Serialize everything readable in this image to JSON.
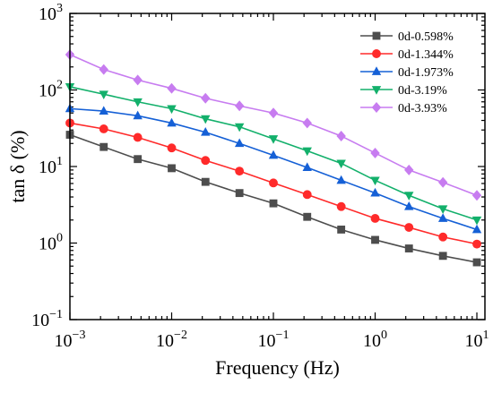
{
  "chart_data": {
    "type": "line",
    "xlabel": "Frequency (Hz)",
    "ylabel": "tan δ (%)",
    "xscale": "log",
    "yscale": "log",
    "xlim": [
      0.001,
      12
    ],
    "ylim": [
      0.1,
      1000
    ],
    "x_ticks": [
      {
        "value": 0.001,
        "base": "10",
        "exp": "−3"
      },
      {
        "value": 0.01,
        "base": "10",
        "exp": "−2"
      },
      {
        "value": 0.1,
        "base": "10",
        "exp": "−1"
      },
      {
        "value": 1,
        "base": "10",
        "exp": "0"
      },
      {
        "value": 10,
        "base": "10",
        "exp": "1"
      }
    ],
    "y_ticks": [
      {
        "value": 0.1,
        "base": "10",
        "exp": "−1"
      },
      {
        "value": 1,
        "base": "10",
        "exp": "0"
      },
      {
        "value": 10,
        "base": "10",
        "exp": "1"
      },
      {
        "value": 100,
        "base": "10",
        "exp": "2"
      },
      {
        "value": 1000,
        "base": "10",
        "exp": "3"
      }
    ],
    "legend_position": "top-right",
    "x": [
      0.001,
      0.00215,
      0.00464,
      0.01,
      0.0215,
      0.0464,
      0.1,
      0.215,
      0.464,
      1,
      2.15,
      4.64,
      10
    ],
    "series": [
      {
        "name": "0d-0.598%",
        "color": "#4d4d4d",
        "marker": "square",
        "values": [
          26,
          18,
          12.5,
          9.5,
          6.3,
          4.5,
          3.3,
          2.2,
          1.5,
          1.1,
          0.85,
          0.68,
          0.56
        ]
      },
      {
        "name": "0d-1.344%",
        "color": "#ff2a2a",
        "marker": "circle",
        "values": [
          37,
          31,
          24,
          17.5,
          12,
          8.7,
          6.1,
          4.3,
          3.0,
          2.1,
          1.6,
          1.2,
          0.97
        ]
      },
      {
        "name": "0d-1.973%",
        "color": "#1560d6",
        "marker": "triangle-up",
        "values": [
          57,
          53,
          46,
          37,
          28,
          20,
          14,
          9.7,
          6.6,
          4.5,
          3.0,
          2.1,
          1.5
        ]
      },
      {
        "name": "0d-3.19%",
        "color": "#13b06b",
        "marker": "triangle-down",
        "values": [
          110,
          88,
          70,
          57,
          42,
          33,
          23,
          16,
          11,
          6.6,
          4.2,
          2.8,
          2.0
        ]
      },
      {
        "name": "0d-3.93%",
        "color": "#c77cf0",
        "marker": "diamond",
        "values": [
          290,
          185,
          135,
          105,
          78,
          62,
          50,
          37,
          25,
          15,
          9.0,
          6.2,
          4.2
        ]
      }
    ]
  }
}
